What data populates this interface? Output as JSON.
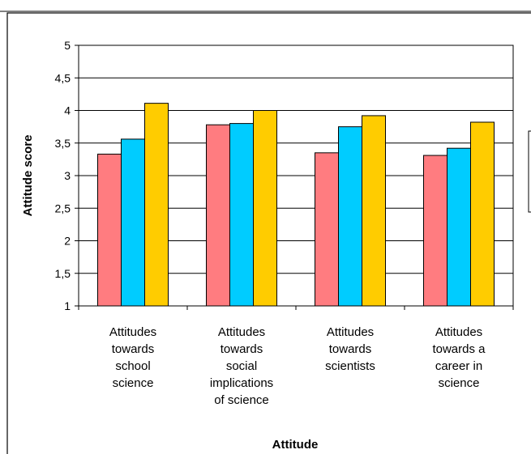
{
  "chart_data": {
    "type": "bar",
    "title": "",
    "xlabel": "Attitude",
    "ylabel": "Attitude score",
    "ylim": [
      1,
      5
    ],
    "yticks": [
      "1",
      "1,5",
      "2",
      "2,5",
      "3",
      "3,5",
      "4",
      "4,5",
      "5"
    ],
    "ytick_values": [
      1,
      1.5,
      2,
      2.5,
      3,
      3.5,
      4,
      4.5,
      5
    ],
    "grid": true,
    "categories": [
      [
        "Attitudes",
        "towards",
        "school",
        "science"
      ],
      [
        "Attitudes",
        "towards",
        "social",
        "implications",
        "of science"
      ],
      [
        "Attitudes",
        "towards",
        "scientists"
      ],
      [
        "Attitudes",
        "towards a",
        "career in",
        "science"
      ]
    ],
    "series": [
      {
        "color": "#FF7C80",
        "values": [
          3.33,
          3.78,
          3.35,
          3.31
        ]
      },
      {
        "color": "#00CCFF",
        "values": [
          3.56,
          3.8,
          3.75,
          3.42
        ]
      },
      {
        "color": "#FFCC00",
        "values": [
          4.11,
          4.0,
          3.92,
          3.82
        ]
      }
    ],
    "legend": "right (partially cropped)"
  }
}
